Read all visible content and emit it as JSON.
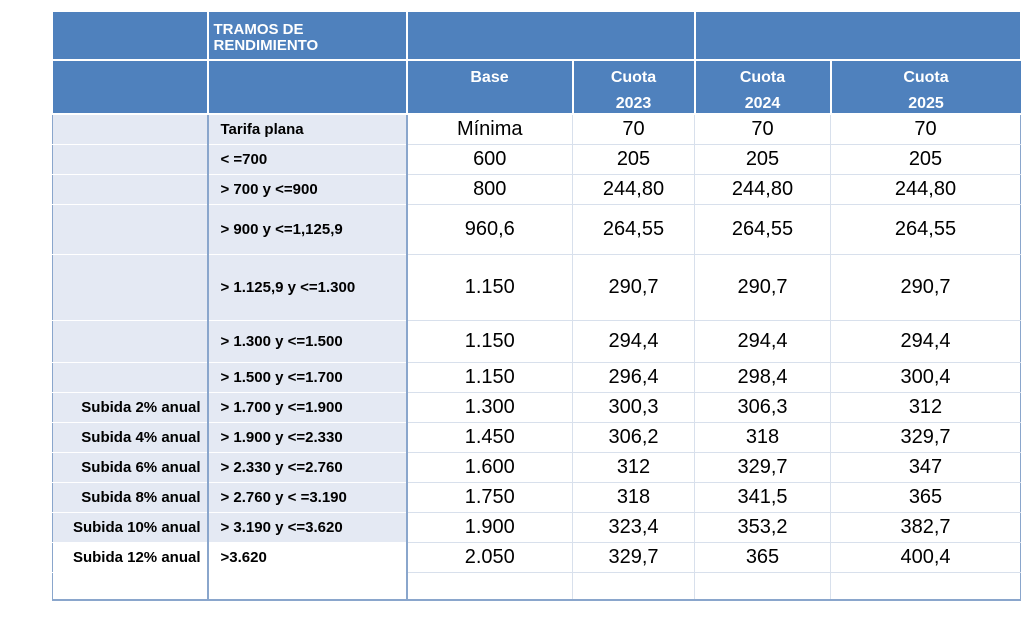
{
  "header": {
    "title": "TRAMOS DE\nRENDIMIENTO",
    "base": "Base",
    "cuota_label": "Cuota",
    "years": [
      "2023",
      "2024",
      "2025"
    ]
  },
  "rows": [
    {
      "subida": "",
      "range": "Tarifa plana",
      "base": "Mínima",
      "c2023": "70",
      "c2024": "70",
      "c2025": "70"
    },
    {
      "subida": "",
      "range": "< =700",
      "base": "600",
      "c2023": "205",
      "c2024": "205",
      "c2025": "205"
    },
    {
      "subida": "",
      "range": "> 700 y <=900",
      "base": "800",
      "c2023": "244,80",
      "c2024": "244,80",
      "c2025": "244,80"
    },
    {
      "subida": "",
      "range": "> 900 y <=1,125,9",
      "base": "960,6",
      "c2023": "264,55",
      "c2024": "264,55",
      "c2025": "264,55"
    },
    {
      "subida": "",
      "range": "> 1.125,9 y <=1.300",
      "base": "1.150",
      "c2023": "290,7",
      "c2024": "290,7",
      "c2025": "290,7"
    },
    {
      "subida": "",
      "range": "> 1.300 y <=1.500",
      "base": "1.150",
      "c2023": "294,4",
      "c2024": "294,4",
      "c2025": "294,4"
    },
    {
      "subida": "",
      "range": "> 1.500 y <=1.700",
      "base": "1.150",
      "c2023": "296,4",
      "c2024": "298,4",
      "c2025": "300,4"
    },
    {
      "subida": "Subida 2% anual",
      "range": "> 1.700 y <=1.900",
      "base": "1.300",
      "c2023": "300,3",
      "c2024": "306,3",
      "c2025": "312"
    },
    {
      "subida": "Subida 4% anual",
      "range": "> 1.900 y <=2.330",
      "base": "1.450",
      "c2023": "306,2",
      "c2024": "318",
      "c2025": "329,7"
    },
    {
      "subida": "Subida 6% anual",
      "range": "> 2.330 y <=2.760",
      "base": "1.600",
      "c2023": "312",
      "c2024": "329,7",
      "c2025": "347"
    },
    {
      "subida": "Subida 8% anual",
      "range": "> 2.760 y < =3.190",
      "base": "1.750",
      "c2023": "318",
      "c2024": "341,5",
      "c2025": "365"
    },
    {
      "subida": "Subida 10% anual",
      "range": "> 3.190 y <=3.620",
      "base": "1.900",
      "c2023": "323,4",
      "c2024": "353,2",
      "c2025": "382,7"
    },
    {
      "subida": "Subida 12% anual",
      "range": ">3.620",
      "base": "2.050",
      "c2023": "329,7",
      "c2024": "365",
      "c2025": "400,4"
    }
  ]
}
